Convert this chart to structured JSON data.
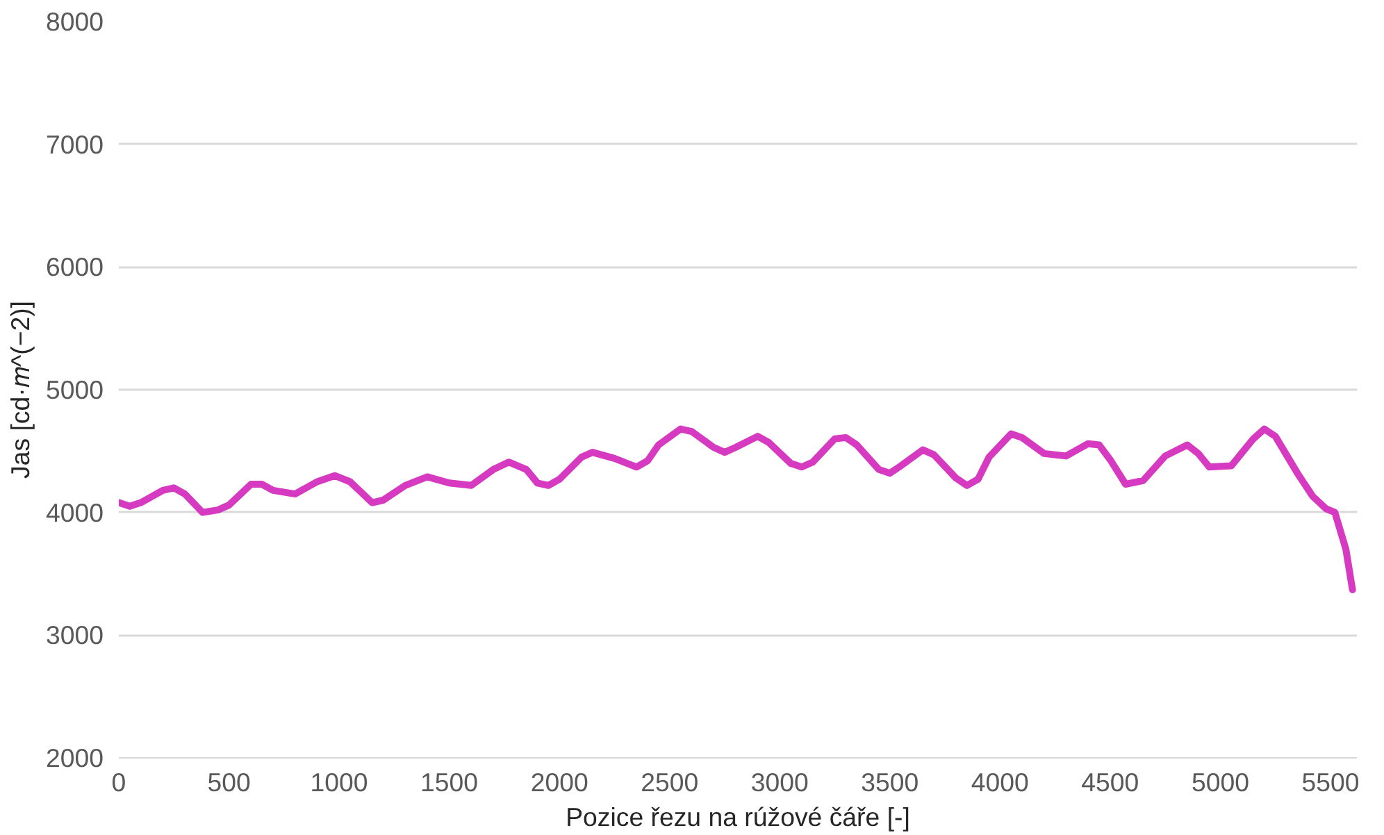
{
  "chart_data": {
    "type": "line",
    "xlabel": "Pozice řezu na rúžové čáře [-]",
    "ylabel": "Jas [cd·𝑚^(−2)]",
    "xlim": [
      0,
      5620
    ],
    "ylim": [
      2000,
      8000
    ],
    "xticks": [
      0,
      500,
      1000,
      1500,
      2000,
      2500,
      3000,
      3500,
      4000,
      4500,
      5000,
      5500
    ],
    "yticks": [
      2000,
      3000,
      4000,
      5000,
      6000,
      7000,
      8000
    ],
    "grid": "y",
    "marker": "none",
    "line_style": "solid",
    "series": [
      {
        "color": "#d63ac0",
        "x": [
          0,
          50,
          100,
          200,
          250,
          300,
          380,
          450,
          500,
          600,
          650,
          700,
          800,
          900,
          980,
          1050,
          1150,
          1200,
          1300,
          1400,
          1500,
          1600,
          1700,
          1770,
          1850,
          1900,
          1950,
          2000,
          2100,
          2150,
          2250,
          2350,
          2400,
          2450,
          2550,
          2600,
          2700,
          2750,
          2800,
          2900,
          2950,
          3050,
          3100,
          3150,
          3250,
          3300,
          3350,
          3450,
          3500,
          3550,
          3650,
          3700,
          3800,
          3850,
          3900,
          3950,
          4050,
          4100,
          4200,
          4300,
          4400,
          4450,
          4500,
          4570,
          4650,
          4750,
          4850,
          4900,
          4950,
          5050,
          5150,
          5200,
          5250,
          5350,
          5420,
          5480,
          5520,
          5570,
          5600
        ],
        "values": [
          4080,
          4050,
          4080,
          4180,
          4200,
          4150,
          4000,
          4020,
          4060,
          4230,
          4230,
          4180,
          4150,
          4250,
          4300,
          4250,
          4080,
          4100,
          4220,
          4290,
          4240,
          4220,
          4350,
          4410,
          4350,
          4240,
          4220,
          4270,
          4450,
          4490,
          4440,
          4370,
          4420,
          4550,
          4680,
          4660,
          4530,
          4490,
          4530,
          4620,
          4570,
          4400,
          4370,
          4410,
          4600,
          4610,
          4550,
          4350,
          4320,
          4380,
          4510,
          4470,
          4280,
          4220,
          4270,
          4450,
          4640,
          4610,
          4480,
          4460,
          4560,
          4550,
          4430,
          4230,
          4260,
          4460,
          4550,
          4480,
          4370,
          4380,
          4600,
          4680,
          4620,
          4320,
          4130,
          4030,
          4000,
          3700,
          3370
        ]
      }
    ]
  }
}
